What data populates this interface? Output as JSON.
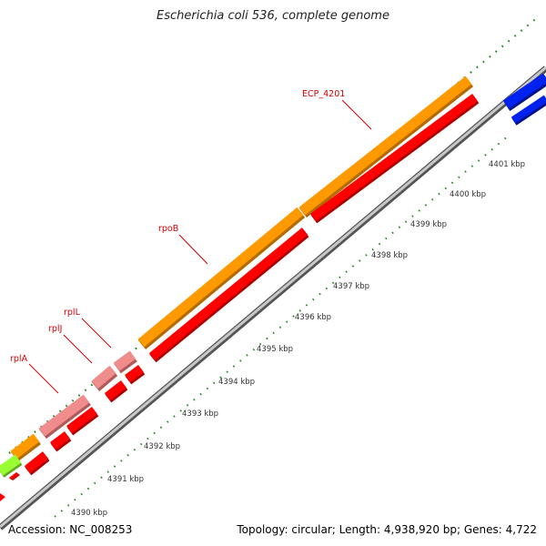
{
  "title": "Escherichia coli 536, complete genome",
  "footer": {
    "accession": "Accession: NC_008253",
    "summary": "Topology: circular; Length: 4,938,920 bp; Genes: 4,722"
  },
  "scale_labels": [
    "4390 kbp",
    "4391 kbp",
    "4392 kbp",
    "4393 kbp",
    "4394 kbp",
    "4395 kbp",
    "4396 kbp",
    "4397 kbp",
    "4398 kbp",
    "4399 kbp",
    "4400 kbp",
    "4401 kbp"
  ],
  "gene_labels": [
    "ECP_4201",
    "rpoB",
    "rplL",
    "rplJ",
    "rplA"
  ],
  "colors": {
    "orange_track": "#ff9900",
    "red_cds": "#ff0000",
    "pink_cds": "#f08c8c",
    "green_cds": "#99ff33",
    "blue_cds": "#0022ee",
    "backbone": "#8a8a8a",
    "tick_green": "#1a8a1a",
    "label_red": "#d00000"
  }
}
